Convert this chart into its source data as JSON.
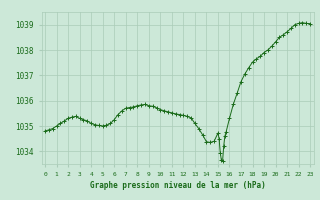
{
  "title": "Graphe pression niveau de la mer (hPa)",
  "x_labels": [
    "0",
    "1",
    "2",
    "3",
    "4",
    "5",
    "6",
    "7",
    "8",
    "9",
    "10",
    "11",
    "12",
    "13",
    "14",
    "15",
    "16",
    "17",
    "18",
    "19",
    "20",
    "21",
    "22",
    "23"
  ],
  "ylim": [
    1033.5,
    1039.5
  ],
  "yticks": [
    1034,
    1035,
    1036,
    1037,
    1038,
    1039
  ],
  "bg_color": "#cce8d8",
  "grid_color": "#aaccb8",
  "line_color": "#1a6b1a",
  "marker_color": "#1a6b1a",
  "data_x": [
    0,
    0.33,
    0.67,
    1,
    1.33,
    1.67,
    2,
    2.33,
    2.67,
    3,
    3.33,
    3.67,
    4,
    4.33,
    4.67,
    5,
    5.33,
    5.67,
    6,
    6.33,
    6.67,
    7,
    7.33,
    7.67,
    8,
    8.33,
    8.67,
    9,
    9.33,
    9.67,
    10,
    10.33,
    10.67,
    11,
    11.33,
    11.67,
    12,
    12.33,
    12.67,
    13,
    13.33,
    13.67,
    14,
    14.33,
    14.67,
    15,
    15.1,
    15.2,
    15.3,
    15.4,
    15.5,
    15.6,
    15.7,
    16,
    16.33,
    16.67,
    17,
    17.33,
    17.67,
    18,
    18.33,
    18.67,
    19,
    19.33,
    19.67,
    20,
    20.33,
    20.67,
    21,
    21.33,
    21.67,
    22,
    22.33,
    22.67,
    23
  ],
  "data_y": [
    1034.8,
    1034.85,
    1034.9,
    1035.0,
    1035.1,
    1035.2,
    1035.3,
    1035.35,
    1035.38,
    1035.3,
    1035.25,
    1035.2,
    1035.1,
    1035.05,
    1035.02,
    1035.0,
    1035.03,
    1035.1,
    1035.25,
    1035.45,
    1035.6,
    1035.7,
    1035.73,
    1035.75,
    1035.8,
    1035.83,
    1035.85,
    1035.8,
    1035.78,
    1035.72,
    1035.65,
    1035.6,
    1035.56,
    1035.52,
    1035.48,
    1035.45,
    1035.42,
    1035.38,
    1035.32,
    1035.1,
    1034.9,
    1034.65,
    1034.38,
    1034.35,
    1034.4,
    1034.72,
    1034.5,
    1033.95,
    1033.65,
    1033.6,
    1034.2,
    1034.6,
    1034.75,
    1035.3,
    1035.85,
    1036.3,
    1036.75,
    1037.05,
    1037.3,
    1037.52,
    1037.65,
    1037.75,
    1037.9,
    1038.0,
    1038.15,
    1038.32,
    1038.5,
    1038.6,
    1038.72,
    1038.85,
    1039.0,
    1039.05,
    1039.08,
    1039.05,
    1039.04
  ]
}
